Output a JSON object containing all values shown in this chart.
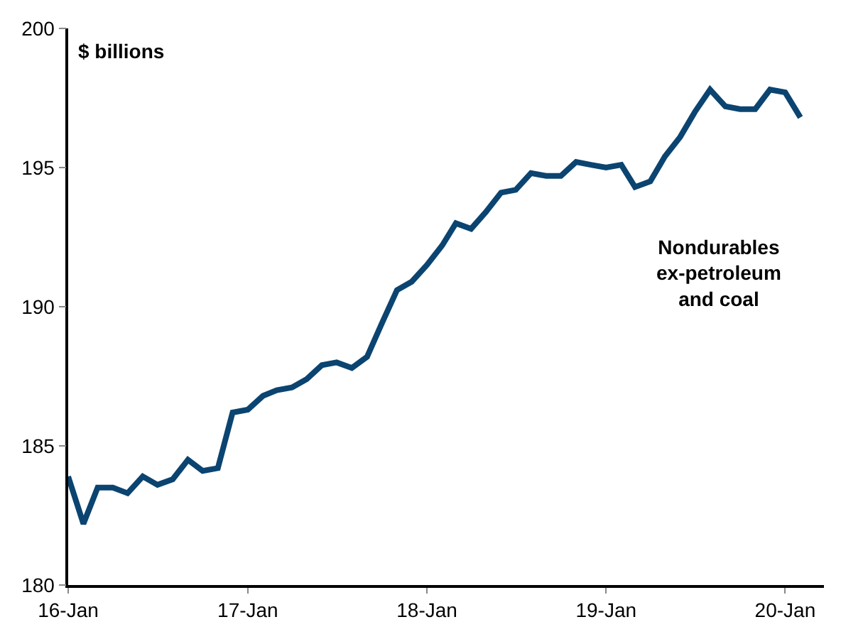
{
  "chart_data": {
    "type": "line",
    "annotations": [
      "$ billions",
      "Nondurables\nex-petroleum\nand coal"
    ],
    "x": [
      "2016-01",
      "2016-02",
      "2016-03",
      "2016-04",
      "2016-05",
      "2016-06",
      "2016-07",
      "2016-08",
      "2016-09",
      "2016-10",
      "2016-11",
      "2016-12",
      "2017-01",
      "2017-02",
      "2017-03",
      "2017-04",
      "2017-05",
      "2017-06",
      "2017-07",
      "2017-08",
      "2017-09",
      "2017-10",
      "2017-11",
      "2017-12",
      "2018-01",
      "2018-02",
      "2018-03",
      "2018-04",
      "2018-05",
      "2018-06",
      "2018-07",
      "2018-08",
      "2018-09",
      "2018-10",
      "2018-11",
      "2018-12",
      "2019-01",
      "2019-02",
      "2019-03",
      "2019-04",
      "2019-05",
      "2019-06",
      "2019-07",
      "2019-08",
      "2019-09",
      "2019-10",
      "2019-11",
      "2019-12",
      "2020-01",
      "2020-02"
    ],
    "series": [
      {
        "color": "#0b4470",
        "values": [
          183.9,
          182.2,
          183.5,
          183.5,
          183.3,
          183.9,
          183.6,
          183.8,
          184.5,
          184.1,
          184.2,
          186.2,
          186.3,
          186.8,
          187.0,
          187.1,
          187.4,
          187.9,
          188.0,
          187.8,
          188.2,
          189.4,
          190.6,
          190.9,
          191.5,
          192.2,
          193.0,
          192.8,
          193.4,
          194.1,
          194.2,
          194.8,
          194.7,
          194.7,
          195.2,
          195.1,
          195.0,
          195.1,
          194.3,
          194.5,
          195.4,
          196.1,
          197.0,
          197.8,
          197.2,
          197.1,
          197.1,
          197.8,
          197.7,
          196.8
        ]
      }
    ],
    "xlim": [
      "2016-01-01",
      "2020-03-20"
    ],
    "xticks": [
      {
        "value": "2016-01-01",
        "label": "16-Jan"
      },
      {
        "value": "2017-01-01",
        "label": "17-Jan"
      },
      {
        "value": "2018-01-01",
        "label": "18-Jan"
      },
      {
        "value": "2019-01-01",
        "label": "19-Jan"
      },
      {
        "value": "2020-01-01",
        "label": "20-Jan"
      }
    ],
    "ylim": [
      180,
      200
    ],
    "yticks": [
      180,
      185,
      190,
      195,
      200
    ],
    "marker": "none",
    "line_style": "solid"
  }
}
